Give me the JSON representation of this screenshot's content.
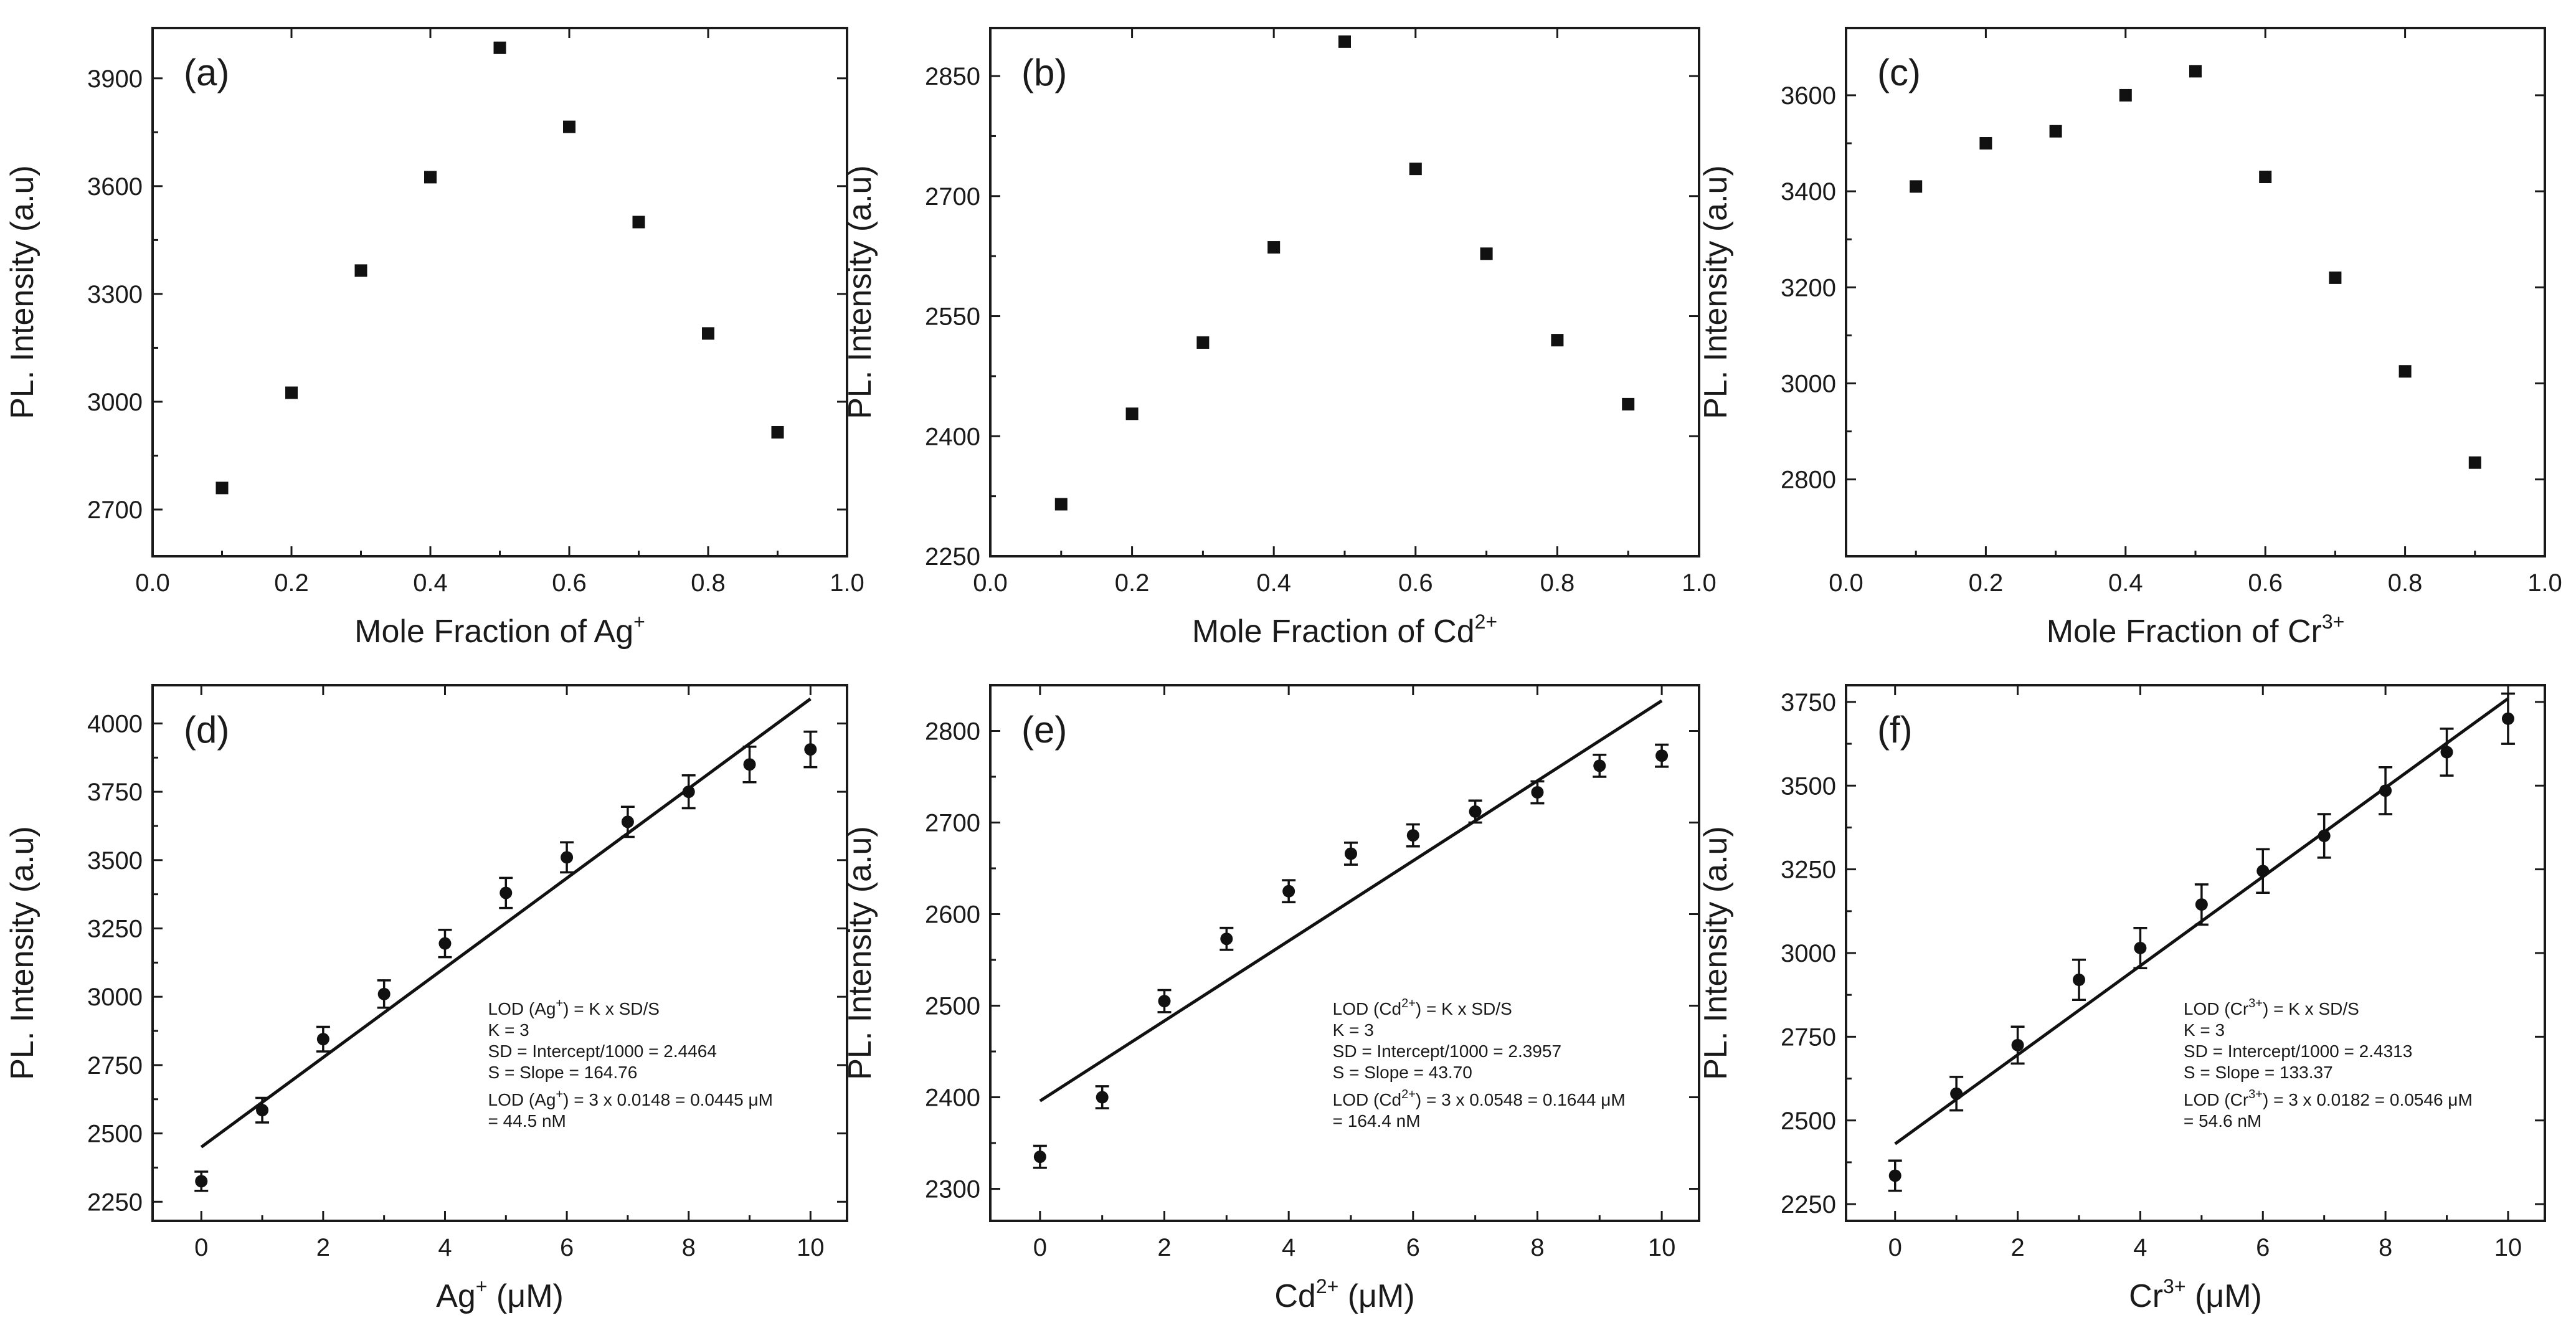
{
  "figure": {
    "background": "#ffffff",
    "ink": "#111111"
  },
  "chart_data": [
    {
      "id": "a",
      "type": "scatter",
      "panel_label": "(a)",
      "xlabel": {
        "main": "Mole Fraction of Ag",
        "sup": "+",
        "suffix": ""
      },
      "ylabel": "PL. Intensity (a.u)",
      "xlim": [
        0.0,
        1.0
      ],
      "ylim": [
        2570,
        4040
      ],
      "xticks": [
        0.0,
        0.2,
        0.4,
        0.6,
        0.8,
        1.0
      ],
      "xtick_labels": [
        "0.0",
        "0.2",
        "0.4",
        "0.6",
        "0.8",
        "1.0"
      ],
      "yticks": [
        2700,
        3000,
        3300,
        3600,
        3900
      ],
      "ytick_labels": [
        "2700",
        "3000",
        "3300",
        "3600",
        "3900"
      ],
      "x": [
        0.1,
        0.2,
        0.3,
        0.4,
        0.5,
        0.6,
        0.7,
        0.8,
        0.9
      ],
      "y": [
        2760,
        3025,
        3365,
        3625,
        3985,
        3765,
        3500,
        3190,
        2915
      ]
    },
    {
      "id": "b",
      "type": "scatter",
      "panel_label": "(b)",
      "xlabel": {
        "main": "Mole Fraction of Cd",
        "sup": "2+",
        "suffix": ""
      },
      "ylabel": "PL. Intensity (a.u)",
      "xlim": [
        0.0,
        1.0
      ],
      "ylim": [
        2250,
        2910
      ],
      "xticks": [
        0.0,
        0.2,
        0.4,
        0.6,
        0.8,
        1.0
      ],
      "xtick_labels": [
        "0.0",
        "0.2",
        "0.4",
        "0.6",
        "0.8",
        "1.0"
      ],
      "yticks": [
        2250,
        2400,
        2550,
        2700,
        2850
      ],
      "ytick_labels": [
        "2250",
        "2400",
        "2550",
        "2700",
        "2850"
      ],
      "x": [
        0.1,
        0.2,
        0.3,
        0.4,
        0.5,
        0.6,
        0.7,
        0.8,
        0.9
      ],
      "y": [
        2315,
        2428,
        2517,
        2636,
        2893,
        2734,
        2628,
        2520,
        2440
      ]
    },
    {
      "id": "c",
      "type": "scatter",
      "panel_label": "(c)",
      "xlabel": {
        "main": "Mole Fraction of Cr",
        "sup": "3+",
        "suffix": ""
      },
      "ylabel": "PL. Intensity (a.u)",
      "xlim": [
        0.0,
        1.0
      ],
      "ylim": [
        2640,
        3740
      ],
      "xticks": [
        0.0,
        0.2,
        0.4,
        0.6,
        0.8,
        1.0
      ],
      "xtick_labels": [
        "0.0",
        "0.2",
        "0.4",
        "0.6",
        "0.8",
        "1.0"
      ],
      "yticks": [
        2800,
        3000,
        3200,
        3400,
        3600
      ],
      "ytick_labels": [
        "2800",
        "3000",
        "3200",
        "3400",
        "3600"
      ],
      "x": [
        0.1,
        0.2,
        0.3,
        0.4,
        0.5,
        0.6,
        0.7,
        0.8,
        0.9
      ],
      "y": [
        3410,
        3500,
        3525,
        3600,
        3650,
        3430,
        3220,
        3025,
        2835
      ]
    },
    {
      "id": "d",
      "type": "scatter",
      "panel_label": "(d)",
      "xlabel": {
        "main": "Ag",
        "sup": "+",
        "suffix": " (μM)"
      },
      "ylabel": "PL. Intensity (a.u)",
      "xlim": [
        -0.8,
        10.6
      ],
      "ylim": [
        2180,
        4140
      ],
      "xticks": [
        0,
        2,
        4,
        6,
        8,
        10
      ],
      "xtick_labels": [
        "0",
        "2",
        "4",
        "6",
        "8",
        "10"
      ],
      "yticks": [
        2250,
        2500,
        2750,
        3000,
        3250,
        3500,
        3750,
        4000
      ],
      "ytick_labels": [
        "2250",
        "2500",
        "2750",
        "3000",
        "3250",
        "3500",
        "3750",
        "4000"
      ],
      "x": [
        0,
        1,
        2,
        3,
        4,
        5,
        6,
        7,
        8,
        9,
        10
      ],
      "y": [
        2325,
        2585,
        2845,
        3010,
        3195,
        3380,
        3510,
        3640,
        3750,
        3850,
        3905
      ],
      "error": [
        35,
        45,
        45,
        50,
        50,
        55,
        55,
        55,
        60,
        65,
        65
      ],
      "fit": {
        "x": [
          0,
          10
        ],
        "y": [
          2450,
          4090
        ]
      },
      "note_lines": [
        {
          "pre": "LOD (Ag",
          "sup": "+",
          "post": ") = K x SD/S"
        },
        {
          "pre": "K = 3",
          "sup": "",
          "post": ""
        },
        {
          "pre": "SD = Intercept/1000 = 2.4464",
          "sup": "",
          "post": ""
        },
        {
          "pre": "S = Slope =  164.76",
          "sup": "",
          "post": ""
        },
        {
          "pre": "LOD (Ag",
          "sup": "+",
          "post": ") = 3 x  0.0148 = 0.0445 μM"
        },
        {
          "pre": "= 44.5 nM",
          "sup": "",
          "post": ""
        }
      ]
    },
    {
      "id": "e",
      "type": "scatter",
      "panel_label": "(e)",
      "xlabel": {
        "main": "Cd",
        "sup": "2+",
        "suffix": " (μM)"
      },
      "ylabel": "PL. Intensity (a.u)",
      "xlim": [
        -0.8,
        10.6
      ],
      "ylim": [
        2265,
        2850
      ],
      "xticks": [
        0,
        2,
        4,
        6,
        8,
        10
      ],
      "xtick_labels": [
        "0",
        "2",
        "4",
        "6",
        "8",
        "10"
      ],
      "yticks": [
        2300,
        2400,
        2500,
        2600,
        2700,
        2800
      ],
      "ytick_labels": [
        "2300",
        "2400",
        "2500",
        "2600",
        "2700",
        "2800"
      ],
      "x": [
        0,
        1,
        2,
        3,
        4,
        5,
        6,
        7,
        8,
        9,
        10
      ],
      "y": [
        2335,
        2400,
        2505,
        2573,
        2625,
        2666,
        2686,
        2712,
        2733,
        2762,
        2773
      ],
      "error": [
        12,
        12,
        12,
        12,
        12,
        12,
        12,
        12,
        12,
        12,
        12
      ],
      "fit": {
        "x": [
          0,
          10
        ],
        "y": [
          2396,
          2833
        ]
      },
      "note_lines": [
        {
          "pre": "LOD (Cd",
          "sup": "2+",
          "post": ") = K x SD/S"
        },
        {
          "pre": "K = 3",
          "sup": "",
          "post": ""
        },
        {
          "pre": "SD = Intercept/1000 = 2.3957",
          "sup": "",
          "post": ""
        },
        {
          "pre": "S = Slope =  43.70",
          "sup": "",
          "post": ""
        },
        {
          "pre": "LOD (Cd",
          "sup": "2+",
          "post": ") = 3 x  0.0548 = 0.1644 μM"
        },
        {
          "pre": "= 164.4 nM",
          "sup": "",
          "post": ""
        }
      ]
    },
    {
      "id": "f",
      "type": "scatter",
      "panel_label": "(f)",
      "xlabel": {
        "main": "Cr",
        "sup": "3+",
        "suffix": " (μM)"
      },
      "ylabel": "PL. Intensity (a.u)",
      "xlim": [
        -0.8,
        10.6
      ],
      "ylim": [
        2200,
        3800
      ],
      "xticks": [
        0,
        2,
        4,
        6,
        8,
        10
      ],
      "xtick_labels": [
        "0",
        "2",
        "4",
        "6",
        "8",
        "10"
      ],
      "yticks": [
        2250,
        2500,
        2750,
        3000,
        3250,
        3500,
        3750
      ],
      "ytick_labels": [
        "2250",
        "2500",
        "2750",
        "3000",
        "3250",
        "3500",
        "3750"
      ],
      "x": [
        0,
        1,
        2,
        3,
        4,
        5,
        6,
        7,
        8,
        9,
        10
      ],
      "y": [
        2335,
        2580,
        2725,
        2920,
        3015,
        3145,
        3245,
        3350,
        3485,
        3600,
        3700
      ],
      "error": [
        45,
        50,
        55,
        60,
        60,
        60,
        65,
        65,
        70,
        70,
        75
      ],
      "fit": {
        "x": [
          0,
          10
        ],
        "y": [
          2430,
          3760
        ]
      },
      "note_lines": [
        {
          "pre": "LOD (Cr",
          "sup": "3+",
          "post": ") = K x SD/S"
        },
        {
          "pre": "K = 3",
          "sup": "",
          "post": ""
        },
        {
          "pre": "SD = Intercept/1000 = 2.4313",
          "sup": "",
          "post": ""
        },
        {
          "pre": "S = Slope =  133.37",
          "sup": "",
          "post": ""
        },
        {
          "pre": "LOD (Cr",
          "sup": "3+",
          "post": ") = 3 x  0.0182 = 0.0546 μM"
        },
        {
          "pre": "= 54.6 nM",
          "sup": "",
          "post": ""
        }
      ]
    }
  ]
}
